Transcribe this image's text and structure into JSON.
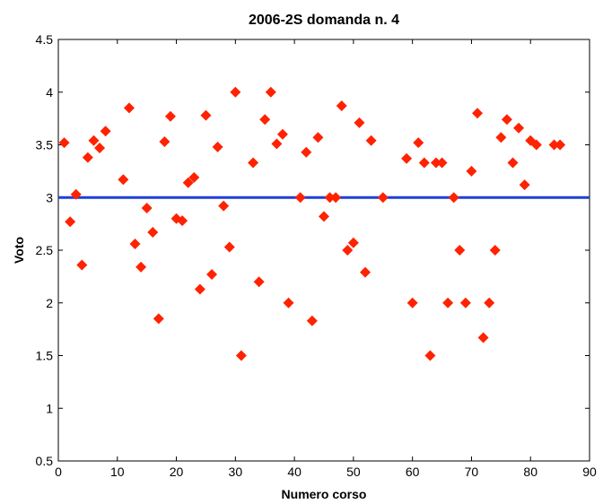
{
  "chart_data": {
    "type": "scatter",
    "title": "2006-2S domanda n.  4",
    "xlabel": "Numero corso",
    "ylabel": "Voto",
    "xlim": [
      0,
      90
    ],
    "ylim": [
      0.5,
      4.5
    ],
    "xticks": [
      "0",
      "10",
      "20",
      "30",
      "40",
      "50",
      "60",
      "70",
      "80",
      "90"
    ],
    "yticks": [
      "0.5",
      "1",
      "1.5",
      "2",
      "2.5",
      "3",
      "3.5",
      "4",
      "4.5"
    ],
    "grid": false,
    "legend": "none",
    "reference_line": {
      "y": 3.0,
      "color": "#1f3fd8"
    },
    "marker": {
      "shape": "diamond",
      "color": "#ff2200"
    },
    "series": [
      {
        "x": [
          1,
          2,
          3,
          4,
          5,
          6,
          7,
          8,
          11,
          12,
          13,
          14,
          15,
          16,
          17,
          18,
          19,
          20,
          21,
          22,
          23,
          24,
          25,
          26,
          27,
          28,
          29,
          30,
          31,
          33,
          34,
          35,
          36,
          37,
          38,
          39,
          41,
          42,
          43,
          44,
          45,
          46,
          47,
          48,
          49,
          50,
          51,
          52,
          53,
          55,
          59,
          60,
          61,
          62,
          63,
          64,
          65,
          66,
          67,
          68,
          69,
          70,
          71,
          72,
          73,
          74,
          75,
          76,
          77,
          78,
          79,
          80,
          81,
          84,
          85
        ],
        "y": [
          3.52,
          2.77,
          3.03,
          2.36,
          3.38,
          3.54,
          3.47,
          3.63,
          3.17,
          3.85,
          2.56,
          2.34,
          2.9,
          2.67,
          1.85,
          3.53,
          3.77,
          2.8,
          2.78,
          3.14,
          3.19,
          2.13,
          3.78,
          2.27,
          3.48,
          2.92,
          2.53,
          4.0,
          1.5,
          3.33,
          2.2,
          3.74,
          4.0,
          3.51,
          3.6,
          2.0,
          3.0,
          3.43,
          1.83,
          3.57,
          2.82,
          3.0,
          3.0,
          3.87,
          2.5,
          2.57,
          3.71,
          2.29,
          3.54,
          3.0,
          3.37,
          2.0,
          3.52,
          3.33,
          1.5,
          3.33,
          3.33,
          2.0,
          3.0,
          2.5,
          2.0,
          3.25,
          3.8,
          1.67,
          2.0,
          2.5,
          3.57,
          3.74,
          3.33,
          3.66,
          3.12,
          3.54,
          3.5,
          3.5,
          3.5
        ]
      }
    ]
  }
}
